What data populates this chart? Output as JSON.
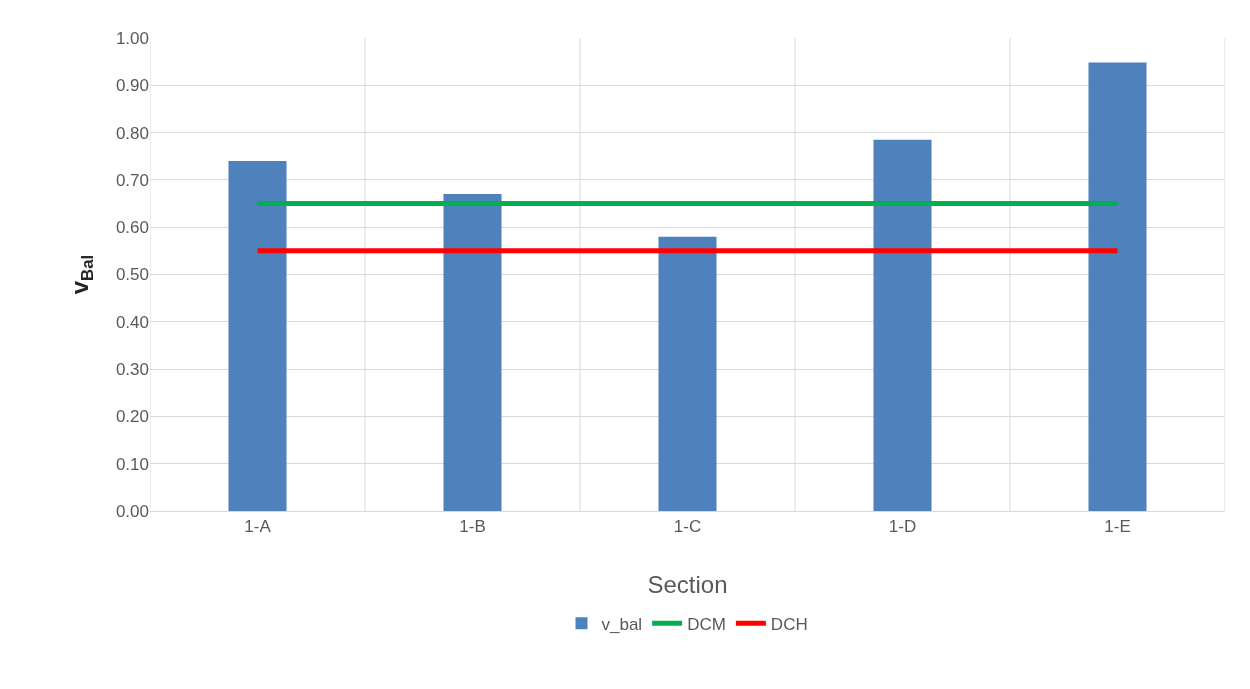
{
  "chart_data": {
    "type": "bar",
    "xlabel": "Section",
    "ylabel": "v$_{Bal}$",
    "categories": [
      "1-A",
      "1-B",
      "1-C",
      "1-D",
      "1-E"
    ],
    "series": [
      {
        "name": "v_bal",
        "color": "#4f81bd",
        "values": [
          0.74,
          0.67,
          0.58,
          0.785,
          0.948
        ]
      },
      {
        "name": "DCM",
        "type": "line",
        "color": "#00b050",
        "values": [
          0.65,
          0.65,
          0.65,
          0.65,
          0.65
        ]
      },
      {
        "name": "DCH",
        "type": "line",
        "color": "#ff0000",
        "values": [
          0.55,
          0.55,
          0.55,
          0.55,
          0.55
        ]
      }
    ],
    "ylim": [
      0,
      1
    ],
    "yticks": [
      {
        "value": 0,
        "label": "0.00"
      },
      {
        "value": 0.1,
        "label": "0.10"
      },
      {
        "value": 0.2,
        "label": "0.20"
      },
      {
        "value": 0.3,
        "label": "0.30"
      },
      {
        "value": 0.4,
        "label": "0.40"
      },
      {
        "value": 0.5,
        "label": "0.50"
      },
      {
        "value": 0.6,
        "label": "0.60"
      },
      {
        "value": 0.7,
        "label": "0.70"
      },
      {
        "value": 0.8,
        "label": "0.80"
      },
      {
        "value": 0.9,
        "label": "0.90"
      },
      {
        "value": 1,
        "label": "1.00"
      }
    ],
    "grid": true,
    "legend": "bottom",
    "marker": "none",
    "line_style": "solid"
  }
}
